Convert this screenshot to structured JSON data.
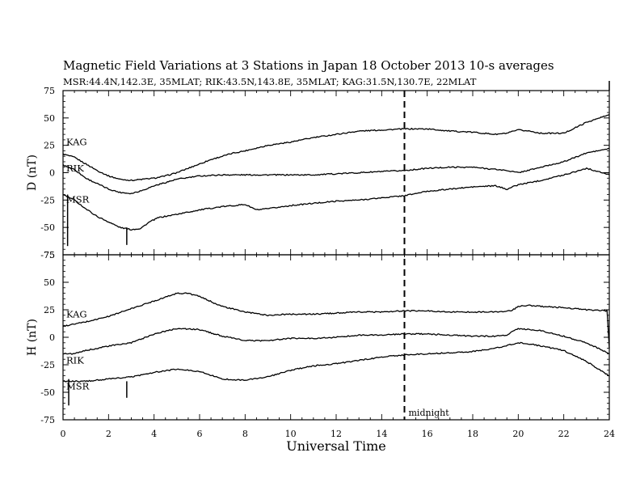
{
  "title": "Magnetic Field Variations at 3 Stations in Japan        18 October 2013      10-s averages",
  "subtitle": "MSR:44.4N,142.3E, 35MLAT;  RIK:43.5N,143.8E, 35MLAT;  KAG:31.5N,130.7E, 22MLAT",
  "chart_data": [
    {
      "type": "line",
      "ylabel": "D (nT)",
      "ylim": [
        -75,
        75
      ],
      "yticks": [
        "75",
        "50",
        "25",
        "0",
        "-25",
        "-50",
        "-75"
      ],
      "xlim": [
        0,
        24
      ],
      "grid": false,
      "series": [
        {
          "name": "KAG",
          "x": [
            0,
            0.5,
            1,
            1.5,
            2,
            2.5,
            3,
            3.5,
            4,
            4.5,
            5,
            5.5,
            6,
            6.5,
            7,
            7.5,
            8,
            9,
            10,
            11,
            12,
            13,
            14,
            15,
            16,
            17,
            18,
            19,
            19.5,
            20,
            20.5,
            21,
            22,
            23,
            24
          ],
          "y": [
            17,
            14,
            8,
            2,
            -3,
            -6,
            -7,
            -6,
            -5,
            -3,
            0,
            4,
            8,
            12,
            15,
            18,
            20,
            25,
            28,
            32,
            35,
            38,
            39,
            40,
            40,
            38,
            37,
            35,
            36,
            39,
            38,
            36,
            36,
            46,
            53
          ]
        },
        {
          "name": "RIK",
          "x": [
            0,
            0.5,
            1,
            1.5,
            2,
            2.5,
            3,
            3.5,
            4,
            5,
            6,
            7,
            8,
            9,
            10,
            11,
            12,
            13,
            14,
            15,
            16,
            17,
            18,
            19,
            19.5,
            20,
            21,
            22,
            23,
            24
          ],
          "y": [
            7,
            3,
            -5,
            -10,
            -15,
            -18,
            -19,
            -16,
            -12,
            -6,
            -3,
            -2,
            -2,
            -2,
            -2,
            -2,
            -1,
            0,
            1,
            2,
            4,
            5,
            5,
            3,
            2,
            0,
            5,
            10,
            18,
            22
          ]
        },
        {
          "name": "MSR",
          "x": [
            0,
            0.5,
            1,
            1.5,
            2,
            2.5,
            3,
            3.4,
            3.8,
            4.2,
            5,
            6,
            7,
            8,
            8.5,
            9,
            10,
            11,
            12,
            13,
            14,
            15,
            16,
            17,
            18,
            19,
            19.5,
            20,
            21,
            22,
            23,
            24
          ],
          "y": [
            -20,
            -25,
            -33,
            -40,
            -45,
            -50,
            -52,
            -51,
            -45,
            -41,
            -38,
            -34,
            -31,
            -29,
            -34,
            -33,
            -30,
            -28,
            -26,
            -25,
            -23,
            -21,
            -17,
            -15,
            -13,
            -12,
            -15,
            -11,
            -7,
            -2,
            4,
            -2
          ]
        }
      ],
      "station_labels": [
        "KAG",
        "RIK",
        "MSR"
      ]
    },
    {
      "type": "line",
      "ylabel": "H (nT)",
      "ylim": [
        -75,
        75
      ],
      "yticks": [
        "75",
        "50",
        "25",
        "0",
        "-25",
        "-50",
        "-75"
      ],
      "xlim": [
        0,
        24
      ],
      "grid": false,
      "xlabel": "Universal Time",
      "xticks": [
        "0",
        "2",
        "4",
        "6",
        "8",
        "10",
        "12",
        "14",
        "16",
        "18",
        "20",
        "22",
        "24"
      ],
      "series": [
        {
          "name": "KAG",
          "x": [
            0,
            1,
            2,
            3,
            4,
            5,
            5.5,
            6,
            7,
            8,
            9,
            10,
            11,
            12,
            13,
            14,
            15,
            16,
            17,
            18,
            19,
            19.7,
            20,
            20.5,
            21,
            22,
            23,
            23.9,
            24
          ],
          "y": [
            10,
            14,
            19,
            26,
            33,
            40,
            40,
            37,
            28,
            23,
            20,
            21,
            21,
            22,
            23,
            23,
            24,
            24,
            23,
            23,
            23,
            24,
            28,
            29,
            28,
            27,
            25,
            24,
            -10
          ]
        },
        {
          "name": "RIK",
          "x": [
            0,
            0.5,
            1,
            2,
            3,
            4,
            5,
            6,
            7,
            8,
            9,
            10,
            11,
            12,
            13,
            14,
            15,
            16,
            17,
            18,
            19,
            19.5,
            20,
            21,
            22,
            23,
            24
          ],
          "y": [
            -15,
            -15,
            -12,
            -8,
            -5,
            3,
            8,
            7,
            1,
            -3,
            -3,
            -1,
            -1,
            0,
            2,
            2,
            3,
            3,
            2,
            1,
            1,
            2,
            8,
            6,
            1,
            -5,
            -15
          ]
        },
        {
          "name": "MSR",
          "x": [
            0,
            1,
            2,
            3,
            4,
            5,
            6,
            7,
            8,
            9,
            10,
            11,
            12,
            13,
            14,
            15,
            16,
            17,
            18,
            19,
            20,
            20.5,
            21,
            22,
            23,
            24
          ],
          "y": [
            -40,
            -40,
            -38,
            -36,
            -32,
            -29,
            -31,
            -38,
            -39,
            -36,
            -30,
            -26,
            -24,
            -21,
            -18,
            -16,
            -15,
            -14,
            -13,
            -10,
            -5,
            -6,
            -8,
            -12,
            -22,
            -35
          ]
        }
      ],
      "station_labels": [
        "KAG",
        "RIK",
        "MSR"
      ],
      "annotations": [
        "midnight"
      ]
    }
  ]
}
